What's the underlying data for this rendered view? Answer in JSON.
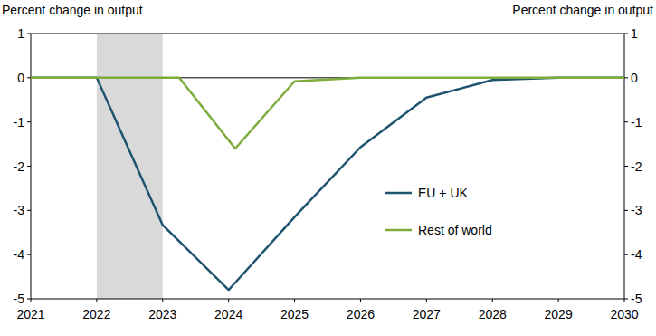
{
  "chart_data": {
    "type": "line",
    "y_label": "Percent change in output",
    "xlim": [
      2021,
      2030
    ],
    "xticks": [
      2021,
      2022,
      2023,
      2024,
      2025,
      2026,
      2027,
      2028,
      2029,
      2030
    ],
    "ylim": [
      -5,
      1
    ],
    "yticks": [
      -5,
      -4,
      -3,
      -2,
      -1,
      0,
      1
    ],
    "shaded_range": [
      2022,
      2023
    ],
    "legend": "right",
    "grid": false,
    "series": [
      {
        "name": "EU + UK",
        "color": "#1f5470",
        "x": [
          2021,
          2022,
          2023,
          2024,
          2025,
          2026,
          2027,
          2028,
          2029,
          2030
        ],
        "values": [
          0,
          0,
          -3.33,
          -4.8,
          -3.15,
          -1.57,
          -0.45,
          -0.05,
          0,
          0
        ]
      },
      {
        "name": "Rest of world",
        "color": "#7dab3c",
        "x": [
          2021,
          2022,
          2023,
          2023.25,
          2024.1,
          2025,
          2026,
          2027,
          2028,
          2029,
          2030
        ],
        "values": [
          0,
          0,
          0,
          0,
          -1.6,
          -0.08,
          0,
          0,
          0,
          0,
          0
        ]
      }
    ]
  }
}
